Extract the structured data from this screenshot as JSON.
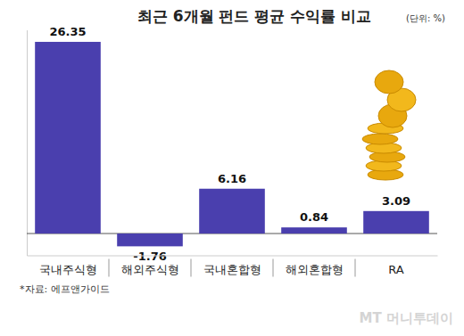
{
  "chart_data": {
    "type": "bar",
    "title": "최근 6개월 펀드 평균 수익률 비교",
    "subtitle": "(단위: %)",
    "categories": [
      "국내주식형",
      "해외주식형",
      "국내혼합형",
      "해외혼합형",
      "RA"
    ],
    "values": [
      26.35,
      -1.76,
      6.16,
      0.84,
      3.09
    ],
    "color": "#4a3fae",
    "ylim": [
      -3,
      28
    ],
    "yticks": [
      0
    ],
    "grid": true,
    "data_labels": true,
    "tick_labels": "x",
    "annotations": [
      "*자료: 에프앤가이드",
      "MT 머니투데이"
    ]
  }
}
